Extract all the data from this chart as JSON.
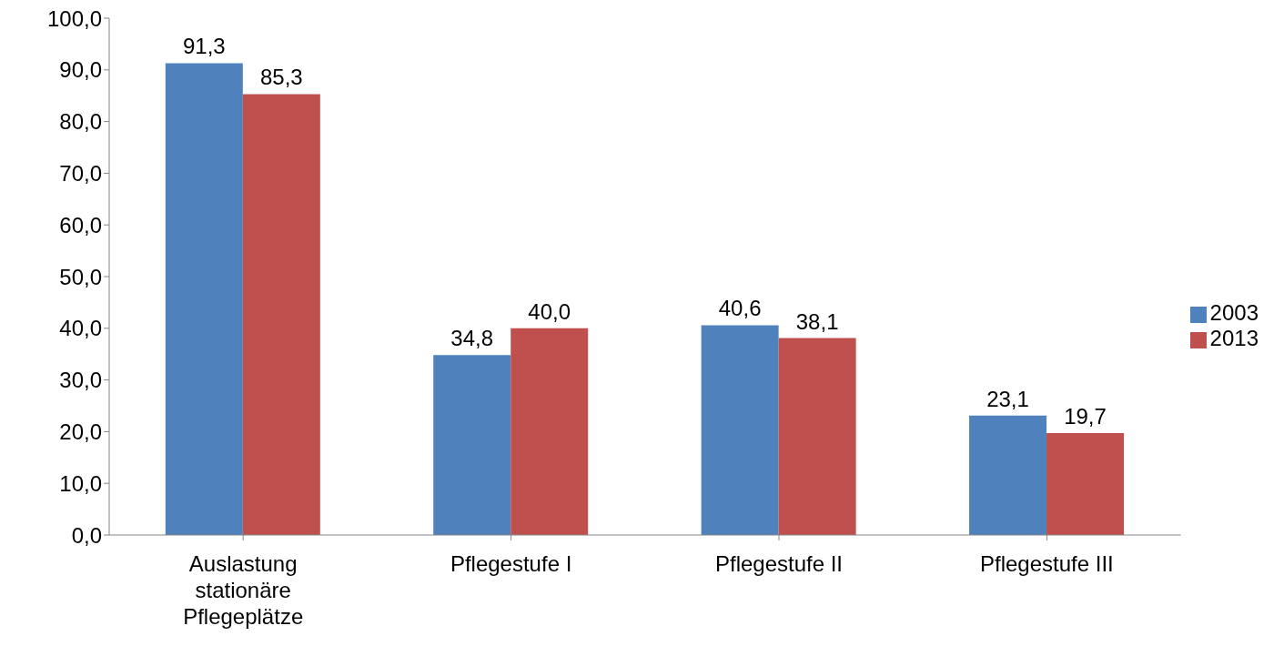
{
  "chart_data": {
    "type": "bar",
    "categories": [
      "Auslastung stationäre Pflegeplätze",
      "Pflegestufe I",
      "Pflegestufe II",
      "Pflegestufe III"
    ],
    "series": [
      {
        "name": "2003",
        "color": "#4f81bd",
        "values": [
          91.3,
          34.8,
          40.6,
          23.1
        ],
        "value_labels": [
          "91,3",
          "34,8",
          "40,6",
          "23,1"
        ]
      },
      {
        "name": "2013",
        "color": "#c0504d",
        "values": [
          85.3,
          40.0,
          38.1,
          19.7
        ],
        "value_labels": [
          "85,3",
          "40,0",
          "38,1",
          "19,7"
        ]
      }
    ],
    "ylim": [
      0,
      100
    ],
    "yticks": [
      {
        "value": 0,
        "label": "0,0"
      },
      {
        "value": 10,
        "label": "10,0"
      },
      {
        "value": 20,
        "label": "20,0"
      },
      {
        "value": 30,
        "label": "30,0"
      },
      {
        "value": 40,
        "label": "40,0"
      },
      {
        "value": 50,
        "label": "50,0"
      },
      {
        "value": 60,
        "label": "60,0"
      },
      {
        "value": 70,
        "label": "70,0"
      },
      {
        "value": 80,
        "label": "80,0"
      },
      {
        "value": 90,
        "label": "90,0"
      },
      {
        "value": 100,
        "label": "100,0"
      }
    ],
    "grid": false,
    "legend": "right"
  }
}
